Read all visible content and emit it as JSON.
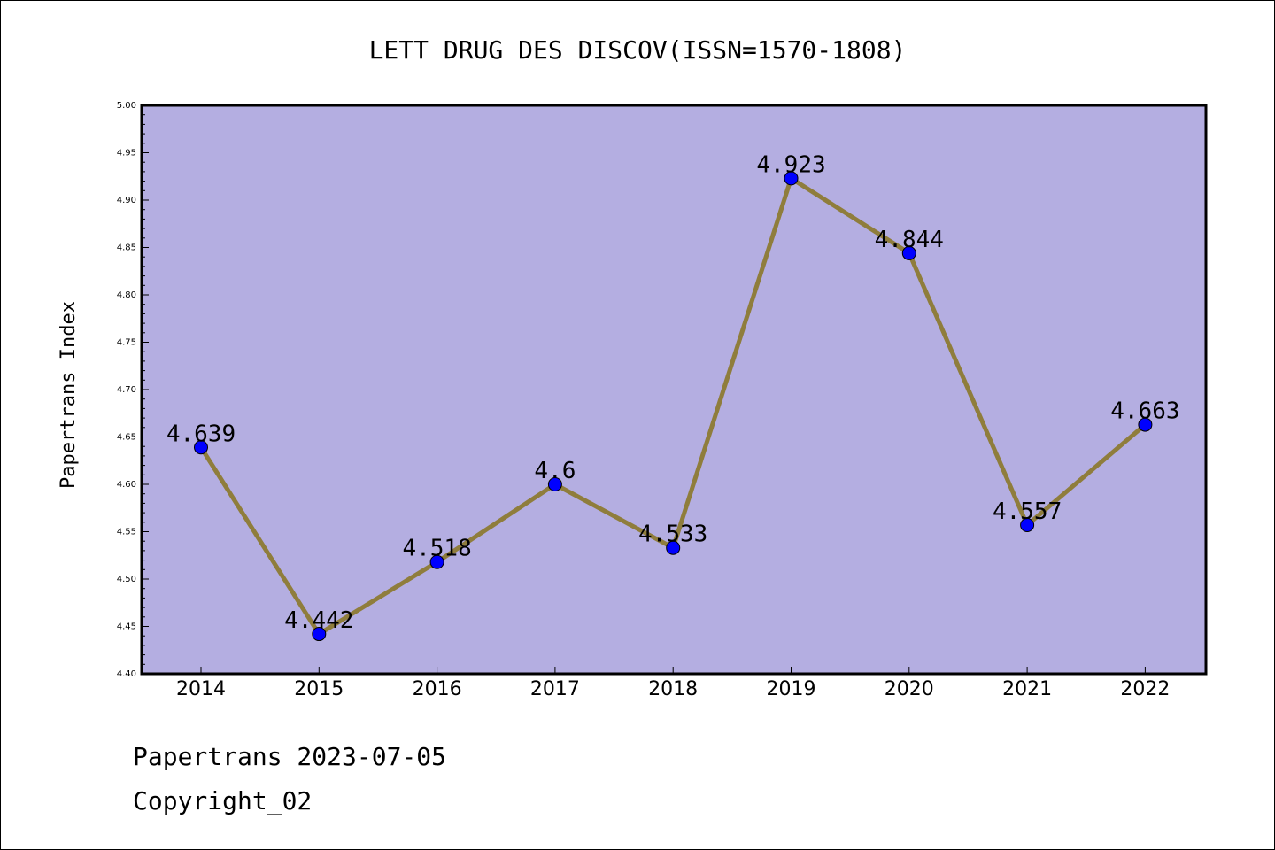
{
  "chart_data": {
    "type": "line",
    "title": "LETT DRUG DES DISCOV(ISSN=1570-1808)",
    "xlabel": "",
    "ylabel": "Papertrans Index",
    "categories": [
      "2014",
      "2015",
      "2016",
      "2017",
      "2018",
      "2019",
      "2020",
      "2021",
      "2022"
    ],
    "values": [
      4.639,
      4.442,
      4.518,
      4.6,
      4.533,
      4.923,
      4.844,
      4.557,
      4.663
    ],
    "data_labels": [
      "4.639",
      "4.442",
      "4.518",
      "4.6",
      "4.533",
      "4.923",
      "4.844",
      "4.557",
      "4.663"
    ],
    "ylim": [
      4.4,
      5.0
    ],
    "yticks": [
      "4.40",
      "4.45",
      "4.50",
      "4.55",
      "4.60",
      "4.65",
      "4.70",
      "4.75",
      "4.80",
      "4.85",
      "4.90",
      "4.95",
      "5.00"
    ],
    "grid": false,
    "legend": "none",
    "colors": {
      "plot_background": "#b4aee1",
      "line": "#8f7d3c",
      "marker": "#0000ff"
    }
  },
  "footer": {
    "line1": "Papertrans 2023-07-05",
    "line2": "Copyright_02"
  }
}
